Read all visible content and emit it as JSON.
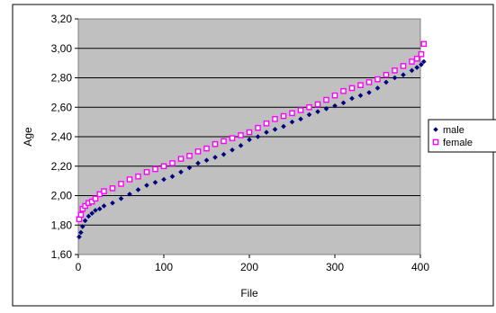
{
  "chart_data": {
    "type": "scatter",
    "title": "",
    "xlabel": "File",
    "ylabel": "Age",
    "xlim": [
      0,
      400
    ],
    "ylim": [
      1.6,
      3.2
    ],
    "x_ticks": [
      0,
      100,
      200,
      300,
      400
    ],
    "x_tick_labels": [
      "0",
      "100",
      "200",
      "300",
      "400"
    ],
    "y_ticks": [
      1.6,
      1.8,
      2.0,
      2.2,
      2.4,
      2.6,
      2.8,
      3.0,
      3.2
    ],
    "y_tick_labels": [
      "1,60",
      "1,80",
      "2,00",
      "2,20",
      "2,40",
      "2,60",
      "2,80",
      "3,00",
      "3,20"
    ],
    "grid": "horizontal",
    "plot_background": "#c0c0c0",
    "legend_position": "right",
    "series": [
      {
        "name": "male",
        "color": "#000080",
        "marker": "diamond",
        "x": [
          1,
          3,
          5,
          8,
          12,
          16,
          20,
          25,
          30,
          40,
          50,
          60,
          70,
          80,
          90,
          100,
          110,
          120,
          130,
          140,
          150,
          160,
          170,
          180,
          190,
          200,
          210,
          220,
          230,
          240,
          250,
          260,
          270,
          280,
          290,
          300,
          310,
          320,
          330,
          340,
          350,
          360,
          370,
          380,
          390,
          396,
          401,
          404
        ],
        "y": [
          1.72,
          1.75,
          1.79,
          1.83,
          1.86,
          1.88,
          1.9,
          1.91,
          1.93,
          1.95,
          1.98,
          2.01,
          2.04,
          2.07,
          2.09,
          2.11,
          2.13,
          2.16,
          2.19,
          2.22,
          2.24,
          2.26,
          2.28,
          2.31,
          2.34,
          2.38,
          2.4,
          2.43,
          2.45,
          2.47,
          2.5,
          2.52,
          2.55,
          2.57,
          2.59,
          2.61,
          2.63,
          2.66,
          2.68,
          2.7,
          2.73,
          2.77,
          2.8,
          2.82,
          2.85,
          2.87,
          2.89,
          2.91
        ]
      },
      {
        "name": "female",
        "color": "#ff00ff",
        "marker": "square",
        "x": [
          1,
          3,
          5,
          8,
          12,
          16,
          20,
          25,
          30,
          40,
          50,
          60,
          70,
          80,
          90,
          100,
          110,
          120,
          130,
          140,
          150,
          160,
          170,
          180,
          190,
          200,
          210,
          220,
          230,
          240,
          250,
          260,
          270,
          280,
          290,
          300,
          310,
          320,
          330,
          340,
          350,
          360,
          370,
          380,
          390,
          396,
          401,
          404
        ],
        "y": [
          1.84,
          1.87,
          1.91,
          1.93,
          1.95,
          1.96,
          1.98,
          2.01,
          2.03,
          2.05,
          2.08,
          2.11,
          2.13,
          2.16,
          2.18,
          2.2,
          2.22,
          2.25,
          2.27,
          2.3,
          2.32,
          2.35,
          2.37,
          2.39,
          2.41,
          2.43,
          2.46,
          2.49,
          2.52,
          2.54,
          2.56,
          2.58,
          2.6,
          2.62,
          2.65,
          2.68,
          2.71,
          2.73,
          2.75,
          2.77,
          2.79,
          2.82,
          2.85,
          2.88,
          2.91,
          2.93,
          2.96,
          3.03
        ]
      }
    ]
  }
}
